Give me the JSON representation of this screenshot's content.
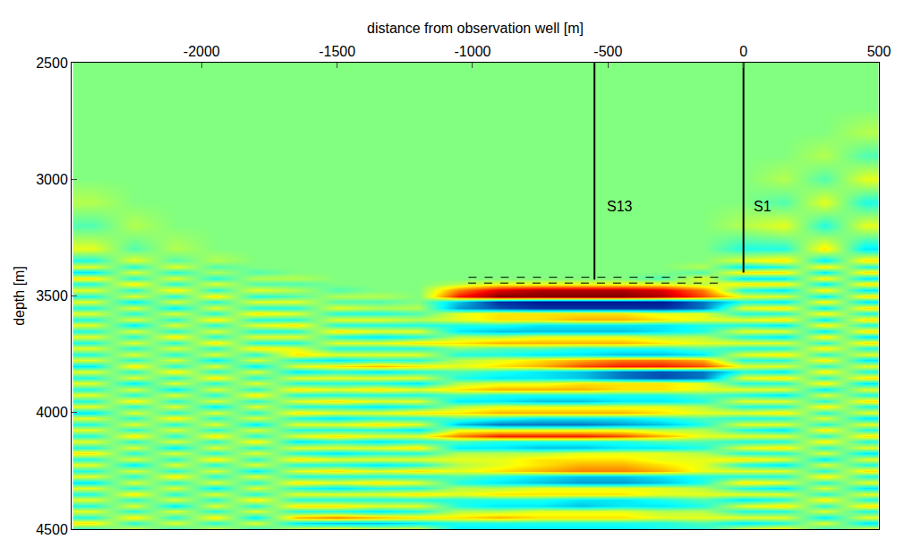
{
  "chart_data": {
    "type": "heatmap",
    "x_label": "distance from observation well [m]",
    "y_label": "depth [m]",
    "xlim": [
      -2480,
      500
    ],
    "xticks": [
      -2000,
      -1500,
      -1000,
      -500,
      0,
      500
    ],
    "ylim": [
      4500,
      2500
    ],
    "yticks": [
      2500,
      3000,
      3500,
      4000,
      4500
    ],
    "zlim": [
      -10,
      10
    ],
    "x": [
      -2400,
      -2250,
      -2100,
      -1950,
      -1800,
      -1650,
      -1500,
      -1350,
      -1200,
      -1050,
      -900,
      -750,
      -600,
      -450,
      -300,
      -150,
      0,
      150,
      300,
      450
    ],
    "y": [
      2500,
      2600,
      2700,
      2800,
      2900,
      3000,
      3100,
      3200,
      3300,
      3350,
      3375,
      3400,
      3425,
      3450,
      3475,
      3500,
      3525,
      3550,
      3575,
      3600,
      3625,
      3650,
      3675,
      3700,
      3725,
      3750,
      3775,
      3800,
      3825,
      3850,
      3875,
      3900,
      3925,
      3950,
      3975,
      4000,
      4025,
      4050,
      4075,
      4100,
      4125,
      4150,
      4175,
      4200,
      4225,
      4250,
      4275,
      4300,
      4325,
      4350,
      4375,
      4400,
      4425,
      4450,
      4475,
      4500
    ],
    "z": [
      [
        0,
        0,
        0,
        0,
        0,
        0,
        0,
        0,
        0,
        0,
        0,
        0,
        0,
        0,
        0,
        0,
        0,
        0,
        0,
        0
      ],
      [
        0,
        0,
        0,
        0,
        0,
        0,
        0,
        0,
        0,
        0,
        0,
        0,
        0,
        0,
        0,
        0,
        0,
        0,
        0,
        0
      ],
      [
        0,
        0,
        0,
        0,
        0,
        0,
        0,
        0,
        0,
        0,
        0,
        0,
        0,
        0,
        0,
        0,
        0,
        0,
        0,
        0
      ],
      [
        0,
        0,
        0,
        0,
        0,
        0,
        0,
        0,
        0,
        0,
        0,
        0,
        0,
        0,
        0,
        0,
        0,
        0,
        0,
        1
      ],
      [
        0,
        0,
        0,
        0,
        0,
        0,
        0,
        0,
        0,
        0,
        0,
        0,
        0,
        0,
        0,
        0,
        0,
        0,
        1,
        -1
      ],
      [
        0,
        0,
        0,
        0,
        0,
        0,
        0,
        0,
        0,
        0,
        0,
        0,
        0,
        0,
        0,
        0,
        0,
        1,
        -1,
        2
      ],
      [
        1,
        0,
        0,
        0,
        0,
        0,
        0,
        0,
        0,
        0,
        0,
        0,
        0,
        0,
        0,
        0,
        0,
        -1,
        2,
        -2
      ],
      [
        -1,
        1,
        0,
        0,
        0,
        0,
        0,
        0,
        0,
        0,
        0,
        0,
        0,
        0,
        0,
        0,
        1,
        2,
        -2,
        2
      ],
      [
        2,
        -1,
        1,
        0,
        0,
        0,
        0,
        0,
        0,
        0,
        0,
        0,
        0,
        0,
        0,
        0,
        -2,
        -2,
        3,
        -3
      ],
      [
        -2,
        2,
        -1,
        1,
        0,
        0,
        0,
        0,
        0,
        0,
        0,
        0,
        0,
        0,
        0,
        0,
        2,
        3,
        -3,
        3
      ],
      [
        2,
        -2,
        2,
        -1,
        0,
        0,
        0,
        0,
        0,
        0,
        0,
        0,
        0,
        0,
        0,
        1,
        -3,
        -2,
        3,
        -2
      ],
      [
        -3,
        2,
        -2,
        1,
        -1,
        0,
        0,
        0,
        0,
        0,
        0,
        0,
        0,
        0,
        0,
        -1,
        3,
        3,
        -3,
        3
      ],
      [
        3,
        -2,
        2,
        -2,
        1,
        1,
        0,
        0,
        0,
        0,
        0,
        0,
        0,
        0,
        -1,
        2,
        -3,
        -3,
        3,
        -3
      ],
      [
        -2,
        3,
        -2,
        2,
        -1,
        -1,
        0,
        0,
        0,
        1,
        2,
        2,
        2,
        2,
        2,
        1,
        3,
        3,
        -3,
        3
      ],
      [
        2,
        -2,
        3,
        -2,
        2,
        1,
        -1,
        0,
        0,
        5,
        8,
        9,
        9,
        9,
        8,
        5,
        -2,
        -3,
        3,
        -3
      ],
      [
        -2,
        2,
        -2,
        3,
        -2,
        -1,
        1,
        1,
        0,
        7,
        10,
        10,
        10,
        10,
        9,
        6,
        2,
        2,
        -3,
        3
      ],
      [
        2,
        -3,
        2,
        -2,
        2,
        2,
        -1,
        -1,
        0,
        -4,
        -8,
        -9,
        -9,
        -9,
        -9,
        -6,
        -2,
        -3,
        3,
        -3
      ],
      [
        -2,
        2,
        -3,
        2,
        -2,
        -2,
        2,
        1,
        1,
        -5,
        -7,
        -8,
        -8,
        -8,
        -8,
        -6,
        2,
        3,
        -3,
        3
      ],
      [
        2,
        -2,
        2,
        -2,
        3,
        2,
        -2,
        -2,
        -1,
        2,
        3,
        3,
        3,
        3,
        2,
        2,
        -2,
        -2,
        3,
        -2
      ],
      [
        -2,
        2,
        -2,
        3,
        -2,
        -2,
        2,
        2,
        1,
        2,
        3,
        3,
        4,
        4,
        3,
        2,
        2,
        3,
        -3,
        3
      ],
      [
        2,
        -3,
        2,
        -2,
        2,
        3,
        -2,
        -2,
        -2,
        -2,
        -2,
        -3,
        -3,
        -3,
        -3,
        -2,
        -2,
        -3,
        3,
        -2
      ],
      [
        -2,
        2,
        -2,
        2,
        -2,
        -2,
        3,
        2,
        2,
        -3,
        -4,
        -4,
        -4,
        -4,
        -3,
        -2,
        2,
        2,
        -3,
        3
      ],
      [
        2,
        -2,
        3,
        -2,
        2,
        2,
        -2,
        -3,
        -2,
        1,
        1,
        2,
        2,
        2,
        1,
        1,
        -2,
        -3,
        3,
        -3
      ],
      [
        -2,
        2,
        -2,
        3,
        -2,
        -2,
        2,
        2,
        3,
        3,
        4,
        4,
        4,
        4,
        3,
        2,
        2,
        2,
        -2,
        3
      ],
      [
        2,
        -2,
        2,
        -2,
        3,
        2,
        -2,
        -2,
        -2,
        0,
        -1,
        -1,
        -2,
        -2,
        -2,
        -1,
        -2,
        -2,
        3,
        -2
      ],
      [
        -2,
        2,
        -2,
        2,
        -2,
        3,
        2,
        2,
        2,
        -2,
        -2,
        -3,
        -3,
        -4,
        -4,
        -3,
        2,
        3,
        -2,
        2
      ],
      [
        2,
        -2,
        2,
        -3,
        2,
        -2,
        -3,
        -2,
        -2,
        1,
        2,
        3,
        4,
        5,
        5,
        4,
        -2,
        -2,
        3,
        -3
      ],
      [
        -3,
        3,
        -2,
        2,
        -3,
        2,
        3,
        4,
        3,
        2,
        3,
        4,
        6,
        7,
        7,
        6,
        2,
        2,
        -2,
        2
      ],
      [
        2,
        -2,
        3,
        -2,
        2,
        -3,
        -2,
        -3,
        -2,
        -1,
        -2,
        -3,
        -4,
        -6,
        -7,
        -6,
        -2,
        -3,
        3,
        -2
      ],
      [
        -2,
        2,
        -2,
        3,
        -2,
        2,
        2,
        2,
        2,
        -2,
        -3,
        -3,
        -4,
        -6,
        -7,
        -6,
        2,
        3,
        -2,
        3
      ],
      [
        2,
        -3,
        2,
        -2,
        2,
        -2,
        -2,
        -2,
        -3,
        1,
        2,
        2,
        3,
        3,
        3,
        2,
        -2,
        -2,
        3,
        -3
      ],
      [
        -2,
        2,
        -3,
        2,
        -2,
        3,
        2,
        3,
        2,
        3,
        4,
        4,
        4,
        3,
        3,
        2,
        2,
        2,
        -3,
        2
      ],
      [
        2,
        -2,
        2,
        -2,
        3,
        -2,
        -2,
        -2,
        -2,
        -1,
        -2,
        -2,
        -2,
        -2,
        -2,
        -1,
        -2,
        -3,
        2,
        -2
      ],
      [
        -2,
        3,
        -2,
        2,
        -2,
        2,
        3,
        2,
        2,
        -3,
        -3,
        -4,
        -4,
        -3,
        -3,
        -2,
        2,
        2,
        -2,
        3
      ],
      [
        2,
        -2,
        2,
        -3,
        2,
        -2,
        -2,
        -3,
        -2,
        1,
        2,
        2,
        2,
        2,
        2,
        1,
        -2,
        -2,
        3,
        -2
      ],
      [
        -3,
        2,
        -2,
        2,
        -2,
        3,
        2,
        2,
        3,
        3,
        4,
        4,
        4,
        4,
        3,
        2,
        2,
        3,
        -2,
        2
      ],
      [
        2,
        -2,
        3,
        -2,
        2,
        -2,
        -3,
        -2,
        -2,
        -1,
        -2,
        -3,
        -3,
        -3,
        -2,
        -1,
        -2,
        -2,
        2,
        -3
      ],
      [
        -2,
        2,
        -2,
        2,
        -3,
        2,
        2,
        3,
        2,
        -4,
        -6,
        -6,
        -6,
        -5,
        -4,
        -2,
        2,
        2,
        -2,
        2
      ],
      [
        2,
        -2,
        2,
        -2,
        2,
        -2,
        -2,
        -2,
        -3,
        2,
        2,
        2,
        2,
        2,
        1,
        1,
        -2,
        -3,
        3,
        -2
      ],
      [
        -2,
        3,
        -2,
        3,
        -2,
        2,
        3,
        2,
        2,
        5,
        7,
        7,
        7,
        6,
        4,
        2,
        2,
        2,
        -2,
        3
      ],
      [
        2,
        -2,
        2,
        -2,
        3,
        -3,
        -2,
        -3,
        -2,
        -1,
        -2,
        -2,
        -2,
        -2,
        -1,
        -1,
        -2,
        -2,
        3,
        -2
      ],
      [
        -2,
        2,
        -3,
        2,
        -2,
        2,
        2,
        2,
        3,
        -3,
        -3,
        -4,
        -4,
        -3,
        -3,
        -2,
        2,
        3,
        -2,
        2
      ],
      [
        3,
        -2,
        2,
        -2,
        2,
        -2,
        -3,
        -2,
        -2,
        1,
        1,
        1,
        2,
        2,
        2,
        1,
        -2,
        -2,
        2,
        -3
      ],
      [
        -2,
        2,
        -2,
        3,
        -2,
        3,
        2,
        2,
        2,
        2,
        2,
        3,
        3,
        3,
        2,
        2,
        3,
        2,
        -3,
        2
      ],
      [
        2,
        -3,
        2,
        -2,
        2,
        -2,
        -2,
        -3,
        -2,
        1,
        2,
        3,
        4,
        4,
        3,
        2,
        -2,
        -3,
        2,
        -2
      ],
      [
        -2,
        2,
        -2,
        2,
        -3,
        2,
        3,
        2,
        3,
        2,
        3,
        4,
        5,
        5,
        4,
        2,
        2,
        2,
        -2,
        3
      ],
      [
        2,
        -2,
        3,
        -2,
        2,
        -2,
        -2,
        -2,
        -2,
        -1,
        -2,
        -3,
        -4,
        -4,
        -3,
        -2,
        -2,
        -2,
        3,
        -2
      ],
      [
        -3,
        2,
        -2,
        2,
        -2,
        3,
        2,
        3,
        2,
        -2,
        -3,
        -4,
        -5,
        -5,
        -4,
        -2,
        3,
        2,
        -2,
        2
      ],
      [
        2,
        -2,
        2,
        -3,
        2,
        -2,
        -3,
        -2,
        -2,
        1,
        1,
        2,
        2,
        2,
        2,
        1,
        -2,
        -3,
        2,
        -3
      ],
      [
        -2,
        3,
        -2,
        2,
        -2,
        2,
        2,
        2,
        3,
        2,
        3,
        3,
        3,
        3,
        2,
        2,
        2,
        2,
        -2,
        2
      ],
      [
        2,
        -2,
        2,
        -2,
        3,
        -2,
        -2,
        -2,
        -2,
        -2,
        -2,
        -2,
        -3,
        -3,
        -2,
        -1,
        -3,
        -2,
        3,
        -2
      ],
      [
        -2,
        2,
        -3,
        2,
        -2,
        3,
        3,
        2,
        2,
        -2,
        -3,
        -3,
        -4,
        -3,
        -3,
        -2,
        2,
        3,
        -2,
        3
      ],
      [
        2,
        -2,
        2,
        -2,
        2,
        -2,
        -2,
        -3,
        -2,
        1,
        1,
        2,
        2,
        2,
        1,
        1,
        -2,
        -2,
        2,
        -2
      ],
      [
        -2,
        3,
        -2,
        3,
        -3,
        4,
        5,
        4,
        3,
        3,
        4,
        3,
        3,
        3,
        2,
        2,
        2,
        2,
        -3,
        2
      ],
      [
        3,
        -2,
        2,
        -2,
        2,
        -3,
        -4,
        -4,
        -3,
        -2,
        -2,
        -2,
        -2,
        -2,
        -2,
        -1,
        -3,
        -2,
        2,
        -3
      ],
      [
        -2,
        2,
        -2,
        2,
        -2,
        2,
        3,
        2,
        2,
        -3,
        -3,
        -3,
        -3,
        -3,
        -2,
        -2,
        2,
        3,
        -2,
        2
      ]
    ],
    "series": [
      {
        "name": "S13",
        "type": "line",
        "color": "#000000",
        "line_style": "solid",
        "x": [
          -550,
          -550
        ],
        "values": [
          2500,
          3430
        ]
      },
      {
        "name": "S1",
        "type": "line",
        "color": "#000000",
        "line_style": "solid",
        "x": [
          0,
          0
        ],
        "values": [
          2500,
          3400
        ]
      },
      {
        "type": "line",
        "color": "#000000",
        "line_style": "dashed",
        "x": [
          -1015,
          -90,
          -90,
          -1015,
          -1015
        ],
        "values": [
          3420,
          3420,
          3445,
          3445,
          3420
        ]
      }
    ],
    "annotations": [
      {
        "text": "S13",
        "x": -510,
        "y": 3115
      },
      {
        "text": "S1",
        "x": 30,
        "y": 3115
      }
    ]
  }
}
